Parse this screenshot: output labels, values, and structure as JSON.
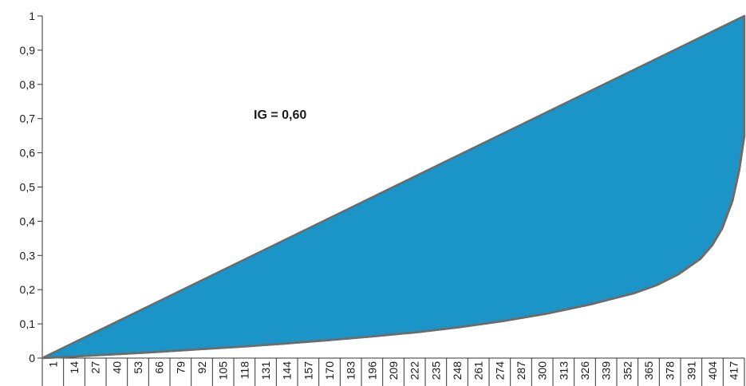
{
  "chart_data": {
    "type": "area",
    "annotation": "IG = 0,60",
    "x_ticks": [
      "1",
      "14",
      "27",
      "40",
      "53",
      "66",
      "79",
      "92",
      "105",
      "118",
      "131",
      "144",
      "157",
      "170",
      "183",
      "196",
      "209",
      "222",
      "235",
      "248",
      "261",
      "274",
      "287",
      "300",
      "313",
      "326",
      "339",
      "352",
      "365",
      "378",
      "391",
      "404",
      "417"
    ],
    "x_range": [
      1,
      417
    ],
    "y_ticks": [
      "0",
      "0,1",
      "0,2",
      "0,3",
      "0,4",
      "0,5",
      "0,6",
      "0,7",
      "0,8",
      "0,9",
      "1"
    ],
    "ylim": [
      0,
      1
    ],
    "grid": false,
    "legend": "none",
    "series": [
      {
        "role": "equality-line",
        "x": [
          1,
          417
        ],
        "y": [
          0,
          1
        ]
      },
      {
        "role": "lorenz-curve",
        "x": [
          1,
          14,
          40,
          66,
          92,
          118,
          144,
          170,
          196,
          222,
          248,
          274,
          300,
          326,
          352,
          365,
          378,
          391,
          398,
          404,
          410,
          414,
          417
        ],
        "y": [
          0,
          0.003,
          0.01,
          0.017,
          0.025,
          0.033,
          0.042,
          0.052,
          0.063,
          0.075,
          0.09,
          0.108,
          0.13,
          0.157,
          0.19,
          0.213,
          0.245,
          0.29,
          0.33,
          0.38,
          0.46,
          0.55,
          0.65
        ]
      }
    ],
    "colors": {
      "fill": "#1b94c8",
      "outline": "#6b6b6b",
      "axis": "#333333"
    }
  }
}
